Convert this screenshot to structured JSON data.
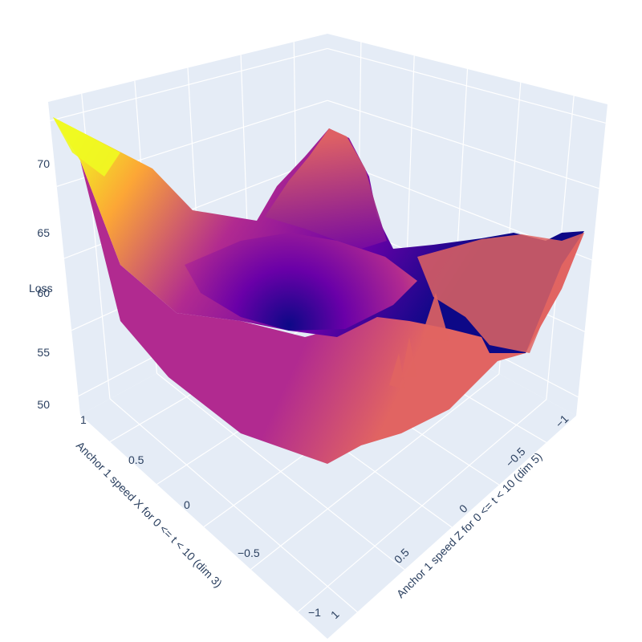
{
  "chart_data": {
    "type": "surface3d",
    "colorscale": [
      "#0d0887",
      "#6a00a8",
      "#b12a90",
      "#e16462",
      "#fca636",
      "#f0f921"
    ],
    "pane_color": "#e5ecf6",
    "grid_color": "#ffffff",
    "axes": {
      "x": {
        "title": "Anchor 1 speed X for 0 <= t < 10 (dim 3)",
        "range": [
          -1,
          1
        ],
        "ticks": [
          "1",
          "0.5",
          "0",
          "−0.5",
          "−1"
        ]
      },
      "y": {
        "title": "Anchor 1 speed Z for 0 <= t < 10 (dim 5)",
        "range": [
          -1,
          1
        ],
        "ticks": [
          "−1",
          "−0.5",
          "0",
          "0.5",
          "1"
        ]
      },
      "z": {
        "title": "Loss",
        "range": [
          49,
          73
        ],
        "ticks": [
          "50",
          "55",
          "60",
          "65",
          "70"
        ]
      }
    },
    "surface_summary": {
      "max_loss": 72.5,
      "max_at": {
        "x": 1,
        "z": 1
      },
      "min_loss": 52,
      "min_near": {
        "x": 0,
        "z": 0
      },
      "peaks": [
        {
          "x": 0.0,
          "z": -1.0,
          "loss": 68
        },
        {
          "x": -0.9,
          "z": 0.2,
          "loss": 64
        },
        {
          "x": -1.0,
          "z": -1.0,
          "loss": 66
        }
      ]
    }
  }
}
